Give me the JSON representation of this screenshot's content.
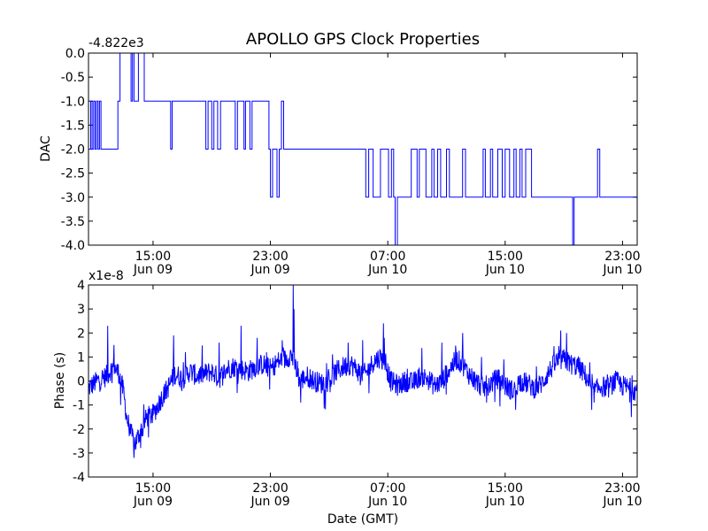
{
  "title": "APOLLO GPS Clock Properties",
  "colors": {
    "line": "#0000ff",
    "axes": "#000000",
    "background": "#ffffff"
  },
  "chart_data": [
    {
      "type": "line",
      "name": "dac",
      "title": "APOLLO GPS Clock Properties",
      "ylabel": "DAC",
      "xlabel": "",
      "offset_label": "-4.822e3",
      "x_unit": "hours since Jun 09 00:00 GMT",
      "xlim": [
        10.6,
        48.0
      ],
      "ylim": [
        -4.0,
        0.0
      ],
      "xticks": [
        15,
        23,
        31,
        39,
        47
      ],
      "xtick_labels": [
        [
          "15:00",
          "Jun 09"
        ],
        [
          "23:00",
          "Jun 09"
        ],
        [
          "07:00",
          "Jun 10"
        ],
        [
          "15:00",
          "Jun 10"
        ],
        [
          "23:00",
          "Jun 10"
        ]
      ],
      "yticks": [
        0.0,
        -0.5,
        -1.0,
        -1.5,
        -2.0,
        -2.5,
        -3.0,
        -3.5,
        -4.0
      ],
      "ytick_labels": [
        "0.0",
        "-0.5",
        "-1.0",
        "-1.5",
        "-2.0",
        "-2.5",
        "-3.0",
        "-3.5",
        "-4.0"
      ],
      "step_points": [
        [
          10.6,
          -2
        ],
        [
          10.75,
          -1
        ],
        [
          10.85,
          -2
        ],
        [
          10.95,
          -1
        ],
        [
          11.05,
          -2
        ],
        [
          11.15,
          -1
        ],
        [
          11.25,
          -2
        ],
        [
          11.35,
          -1
        ],
        [
          11.45,
          -2
        ],
        [
          12.6,
          -1
        ],
        [
          12.75,
          0
        ],
        [
          13.5,
          -1
        ],
        [
          13.6,
          0
        ],
        [
          13.7,
          -1
        ],
        [
          14.0,
          0
        ],
        [
          14.4,
          -1
        ],
        [
          16.2,
          -2
        ],
        [
          16.3,
          -1
        ],
        [
          18.6,
          -2
        ],
        [
          18.75,
          -1
        ],
        [
          19.0,
          -2
        ],
        [
          19.15,
          -1
        ],
        [
          19.4,
          -2
        ],
        [
          19.6,
          -1
        ],
        [
          20.6,
          -2
        ],
        [
          20.75,
          -1
        ],
        [
          21.2,
          -2
        ],
        [
          21.3,
          -1
        ],
        [
          21.6,
          -2
        ],
        [
          21.75,
          -1
        ],
        [
          22.9,
          -2
        ],
        [
          23.0,
          -3
        ],
        [
          23.15,
          -2
        ],
        [
          23.45,
          -3
        ],
        [
          23.6,
          -2
        ],
        [
          23.75,
          -1
        ],
        [
          23.9,
          -2
        ],
        [
          29.5,
          -3
        ],
        [
          29.7,
          -2
        ],
        [
          30.0,
          -3
        ],
        [
          30.5,
          -2
        ],
        [
          31.05,
          -3
        ],
        [
          31.25,
          -2
        ],
        [
          31.4,
          -3
        ],
        [
          31.5,
          -4
        ],
        [
          31.65,
          -3
        ],
        [
          32.6,
          -2
        ],
        [
          33.0,
          -3
        ],
        [
          33.15,
          -2
        ],
        [
          33.6,
          -3
        ],
        [
          34.0,
          -2
        ],
        [
          34.15,
          -3
        ],
        [
          34.4,
          -2
        ],
        [
          34.6,
          -3
        ],
        [
          35.0,
          -2
        ],
        [
          35.2,
          -3
        ],
        [
          36.1,
          -2
        ],
        [
          36.3,
          -3
        ],
        [
          37.5,
          -2
        ],
        [
          37.65,
          -3
        ],
        [
          38.0,
          -2
        ],
        [
          38.15,
          -3
        ],
        [
          38.5,
          -2
        ],
        [
          38.8,
          -3
        ],
        [
          39.0,
          -2
        ],
        [
          39.3,
          -3
        ],
        [
          39.6,
          -2
        ],
        [
          39.75,
          -3
        ],
        [
          40.0,
          -2
        ],
        [
          40.15,
          -3
        ],
        [
          40.4,
          -2
        ],
        [
          40.8,
          -3
        ],
        [
          43.6,
          -4
        ],
        [
          43.7,
          -3
        ],
        [
          45.3,
          -2
        ],
        [
          45.45,
          -3
        ],
        [
          48.0,
          -3
        ]
      ]
    },
    {
      "type": "line",
      "name": "phase",
      "title": "",
      "ylabel": "Phase (s)",
      "xlabel": "Date (GMT)",
      "offset_label": "x1e-8",
      "x_unit": "hours since Jun 09 00:00 GMT",
      "xlim": [
        10.6,
        48.0
      ],
      "ylim": [
        -4,
        4
      ],
      "xticks": [
        15,
        23,
        31,
        39,
        47
      ],
      "xtick_labels": [
        [
          "15:00",
          "Jun 09"
        ],
        [
          "23:00",
          "Jun 09"
        ],
        [
          "07:00",
          "Jun 10"
        ],
        [
          "15:00",
          "Jun 10"
        ],
        [
          "23:00",
          "Jun 10"
        ]
      ],
      "yticks": [
        4,
        3,
        2,
        1,
        0,
        -1,
        -2,
        -3,
        -4
      ],
      "ytick_labels": [
        "4",
        "3",
        "2",
        "1",
        "0",
        "-1",
        "-2",
        "-3",
        "-4"
      ],
      "trend_points": [
        [
          10.6,
          -0.3
        ],
        [
          11.2,
          0.0
        ],
        [
          11.8,
          0.2
        ],
        [
          12.3,
          0.6
        ],
        [
          12.7,
          0.3
        ],
        [
          13.0,
          -0.5
        ],
        [
          13.2,
          -1.5
        ],
        [
          13.5,
          -2.2
        ],
        [
          13.8,
          -2.6
        ],
        [
          14.2,
          -2.0
        ],
        [
          14.6,
          -1.5
        ],
        [
          15.0,
          -1.4
        ],
        [
          15.5,
          -0.8
        ],
        [
          16.0,
          -0.3
        ],
        [
          16.5,
          0.3
        ],
        [
          17.0,
          0.1
        ],
        [
          17.5,
          0.4
        ],
        [
          18.0,
          0.2
        ],
        [
          18.5,
          0.3
        ],
        [
          19.0,
          0.4
        ],
        [
          19.5,
          0.1
        ],
        [
          20.0,
          0.5
        ],
        [
          20.5,
          0.6
        ],
        [
          21.0,
          0.5
        ],
        [
          21.5,
          0.4
        ],
        [
          22.0,
          0.6
        ],
        [
          22.5,
          0.7
        ],
        [
          23.0,
          0.5
        ],
        [
          23.5,
          0.8
        ],
        [
          24.0,
          0.9
        ],
        [
          24.4,
          1.1
        ],
        [
          24.7,
          0.6
        ],
        [
          25.0,
          0.0
        ],
        [
          25.5,
          0.2
        ],
        [
          26.0,
          0.0
        ],
        [
          26.5,
          -0.1
        ],
        [
          27.0,
          0.0
        ],
        [
          27.5,
          0.4
        ],
        [
          28.0,
          0.6
        ],
        [
          28.5,
          0.7
        ],
        [
          29.0,
          0.4
        ],
        [
          29.5,
          0.3
        ],
        [
          30.0,
          0.8
        ],
        [
          30.5,
          1.0
        ],
        [
          30.9,
          0.6
        ],
        [
          31.2,
          0.0
        ],
        [
          31.7,
          -0.2
        ],
        [
          32.2,
          0.0
        ],
        [
          32.7,
          -0.1
        ],
        [
          33.2,
          0.2
        ],
        [
          33.7,
          0.1
        ],
        [
          34.2,
          -0.2
        ],
        [
          34.7,
          0.0
        ],
        [
          35.2,
          0.5
        ],
        [
          35.7,
          0.9
        ],
        [
          36.1,
          0.7
        ],
        [
          36.5,
          0.3
        ],
        [
          37.0,
          0.0
        ],
        [
          37.5,
          -0.3
        ],
        [
          38.0,
          -0.1
        ],
        [
          38.5,
          0.1
        ],
        [
          39.0,
          -0.2
        ],
        [
          39.5,
          -0.4
        ],
        [
          40.0,
          0.0
        ],
        [
          40.5,
          -0.1
        ],
        [
          41.0,
          -0.3
        ],
        [
          41.5,
          -0.1
        ],
        [
          42.0,
          0.4
        ],
        [
          42.5,
          0.8
        ],
        [
          43.0,
          0.9
        ],
        [
          43.5,
          0.7
        ],
        [
          44.0,
          0.6
        ],
        [
          44.5,
          0.2
        ],
        [
          45.0,
          -0.5
        ],
        [
          45.5,
          -0.2
        ],
        [
          46.0,
          -0.3
        ],
        [
          46.5,
          0.0
        ],
        [
          47.0,
          -0.2
        ],
        [
          48.0,
          -0.4
        ]
      ],
      "spikes": [
        [
          11.9,
          2.3
        ],
        [
          12.35,
          1.5
        ],
        [
          12.8,
          -1.0
        ],
        [
          13.7,
          -3.2
        ],
        [
          14.3,
          -2.3
        ],
        [
          16.4,
          1.9
        ],
        [
          17.2,
          1.2
        ],
        [
          19.5,
          1.6
        ],
        [
          21.0,
          2.3
        ],
        [
          22.1,
          1.8
        ],
        [
          23.8,
          1.7
        ],
        [
          24.55,
          4.0
        ],
        [
          24.6,
          3.0
        ],
        [
          25.05,
          -0.9
        ],
        [
          28.3,
          1.6
        ],
        [
          29.3,
          1.7
        ],
        [
          30.7,
          2.4
        ],
        [
          30.75,
          1.8
        ],
        [
          34.7,
          1.6
        ],
        [
          36.1,
          2.0
        ],
        [
          37.4,
          1.0
        ],
        [
          38.9,
          0.9
        ],
        [
          39.7,
          -1.2
        ],
        [
          42.8,
          2.1
        ],
        [
          43.2,
          2.0
        ],
        [
          44.9,
          -1.2
        ],
        [
          47.6,
          -1.5
        ]
      ]
    }
  ]
}
